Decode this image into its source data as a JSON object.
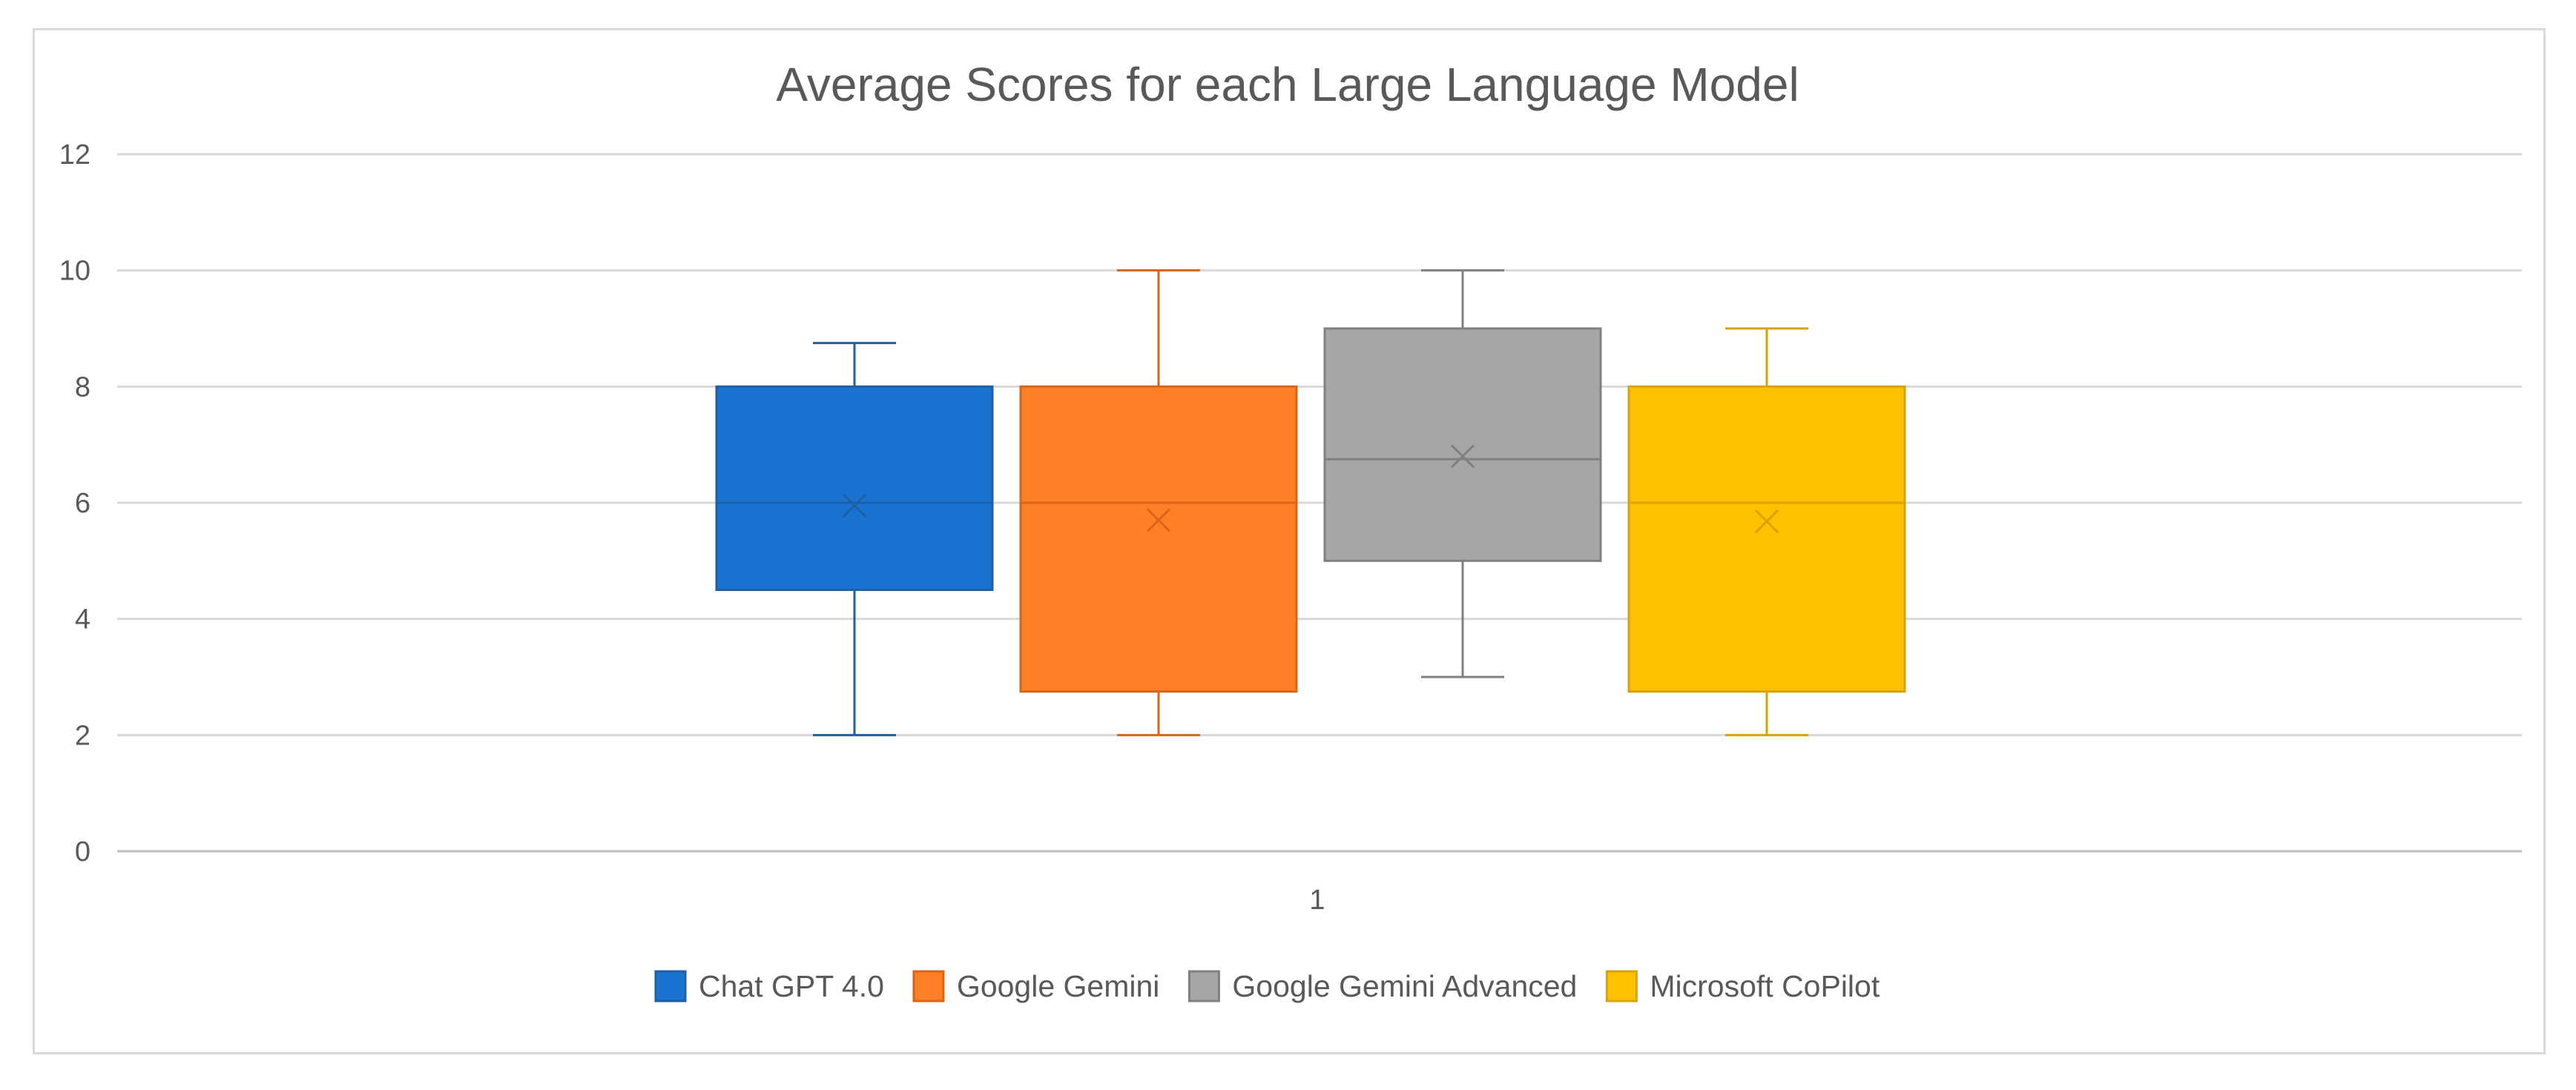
{
  "chart_data": {
    "type": "boxplot",
    "title": "Average Scores for each Large Language Model",
    "xlabel": "",
    "ylabel": "",
    "ylim": [
      0,
      12
    ],
    "yticks": [
      0,
      2,
      4,
      6,
      8,
      10,
      12
    ],
    "categories": [
      "1"
    ],
    "grid": true,
    "legend_position": "bottom",
    "series": [
      {
        "name": "Chat GPT 4.0",
        "color": "#1a73d0",
        "stroke": "#1f5fa6",
        "min": 2,
        "q1": 4.5,
        "median": 6,
        "q3": 8,
        "max": 8.75,
        "mean": 5.95
      },
      {
        "name": "Google Gemini",
        "color": "#ff7f27",
        "stroke": "#d9651a",
        "min": 2,
        "q1": 2.75,
        "median": 6,
        "q3": 8,
        "max": 10,
        "mean": 5.7
      },
      {
        "name": "Google Gemini Advanced",
        "color": "#a6a6a6",
        "stroke": "#808080",
        "min": 3,
        "q1": 5,
        "median": 6.75,
        "q3": 9,
        "max": 10,
        "mean": 6.8
      },
      {
        "name": "Microsoft CoPilot",
        "color": "#ffc000",
        "stroke": "#d9a300",
        "min": 2,
        "q1": 2.75,
        "median": 6,
        "q3": 8,
        "max": 9,
        "mean": 5.68
      }
    ]
  }
}
